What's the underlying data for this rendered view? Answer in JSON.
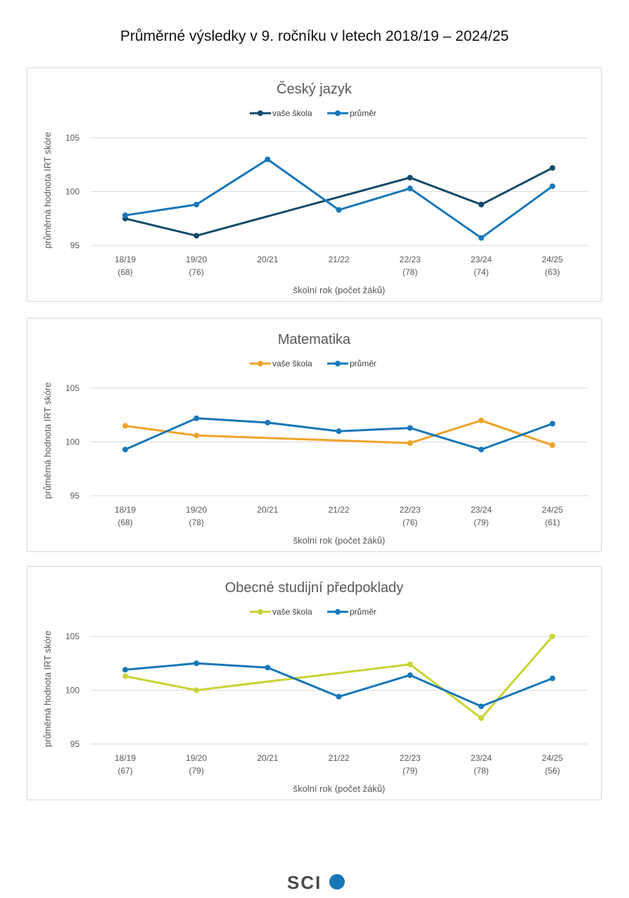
{
  "page_title": "Průměrné výsledky v 9. ročníku v letech 2018/19 – 2024/25",
  "logo_text": "SCI",
  "colors": {
    "dark_blue": "#124a6b",
    "blue": "#1777b8",
    "orange": "#f0a32a",
    "lime": "#c8d435",
    "grid": "#d9d9d9"
  },
  "chart_data": [
    {
      "type": "line",
      "title": "Český jazyk",
      "xlabel": "školní rok (počet žáků)",
      "ylabel": "průměrná hodnota IRT skóre",
      "ylim": [
        95,
        105
      ],
      "yticks": [
        "95",
        "100",
        "105"
      ],
      "grid": true,
      "legend": "top-center",
      "categories": [
        "18/19",
        "19/20",
        "20/21",
        "21/22",
        "22/23",
        "23/24",
        "24/25"
      ],
      "counts": [
        "(68)",
        "(76)",
        "",
        "",
        "(78)",
        "(74)",
        "(63)"
      ],
      "series": [
        {
          "name": "vaše škola",
          "color": "#124a6b",
          "values": [
            97.5,
            95.9,
            null,
            null,
            101.3,
            98.8,
            102.2
          ]
        },
        {
          "name": "průměr",
          "color": "#1777b8",
          "values": [
            97.8,
            98.8,
            103.0,
            98.3,
            100.3,
            95.7,
            100.5
          ]
        }
      ]
    },
    {
      "type": "line",
      "title": "Matematika",
      "xlabel": "školní rok (počet žáků)",
      "ylabel": "průměrná hodnota IRT skóre",
      "ylim": [
        95,
        105
      ],
      "yticks": [
        "95",
        "100",
        "105"
      ],
      "grid": true,
      "legend": "top-center",
      "categories": [
        "18/19",
        "19/20",
        "20/21",
        "21/22",
        "22/23",
        "23/24",
        "24/25"
      ],
      "counts": [
        "(68)",
        "(78)",
        "",
        "",
        "(76)",
        "(79)",
        "(61)"
      ],
      "series": [
        {
          "name": "vaše škola",
          "color": "#f0a32a",
          "values": [
            101.5,
            100.6,
            null,
            null,
            99.9,
            102.0,
            99.7
          ]
        },
        {
          "name": "průměr",
          "color": "#1777b8",
          "values": [
            99.3,
            102.2,
            101.8,
            101.0,
            101.3,
            99.3,
            101.7
          ]
        }
      ]
    },
    {
      "type": "line",
      "title": "Obecné studijní předpoklady",
      "xlabel": "školní rok (počet žáků)",
      "ylabel": "průměrná hodnota IRT skóre",
      "ylim": [
        95,
        105
      ],
      "yticks": [
        "95",
        "100",
        "105"
      ],
      "grid": true,
      "legend": "top-center",
      "categories": [
        "18/19",
        "19/20",
        "20/21",
        "21/22",
        "22/23",
        "23/24",
        "24/25"
      ],
      "counts": [
        "(67)",
        "(79)",
        "",
        "",
        "(79)",
        "(78)",
        "(56)"
      ],
      "series": [
        {
          "name": "vaše škola",
          "color": "#c8d435",
          "values": [
            101.3,
            100.0,
            null,
            null,
            102.4,
            97.4,
            105.0
          ]
        },
        {
          "name": "průměr",
          "color": "#1777b8",
          "values": [
            101.9,
            102.5,
            102.1,
            99.4,
            101.4,
            98.5,
            101.1
          ]
        }
      ]
    }
  ]
}
